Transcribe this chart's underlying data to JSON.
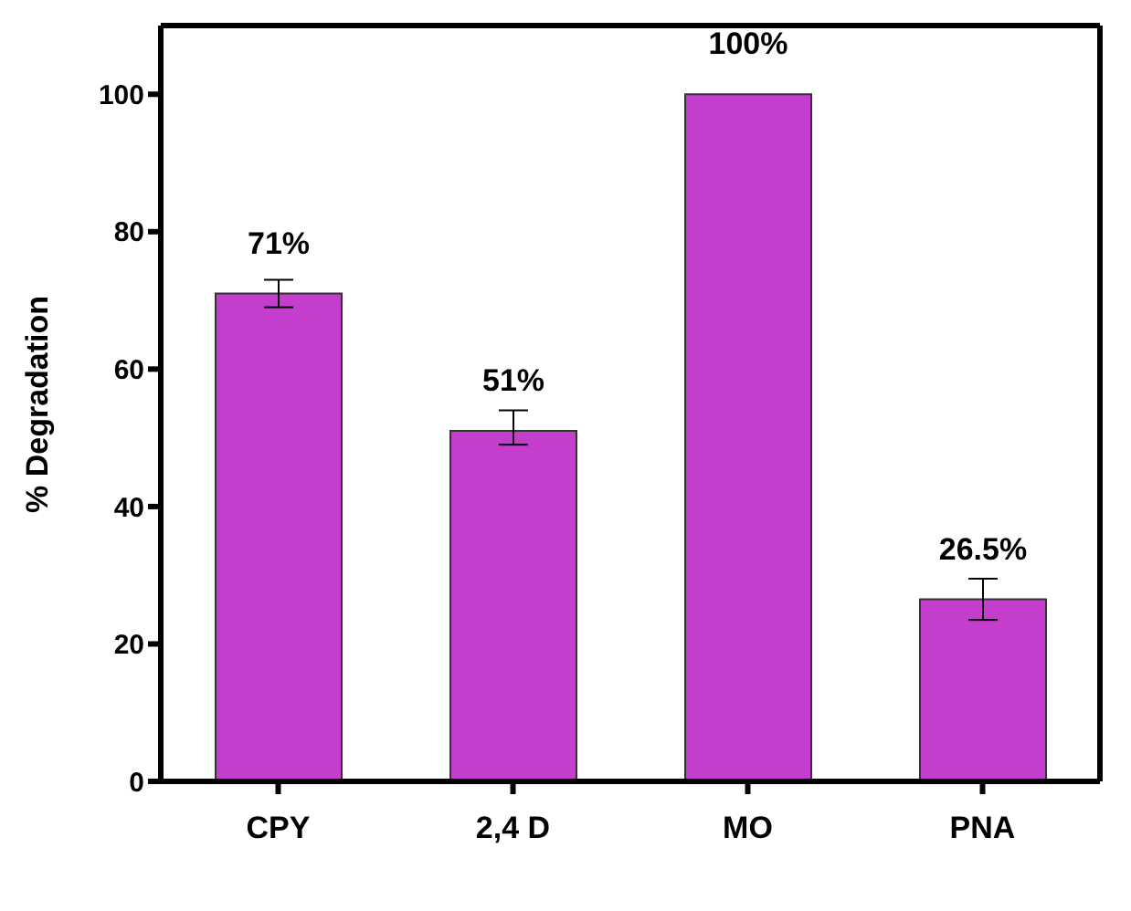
{
  "chart_data": {
    "type": "bar",
    "ylabel": "% Degradation",
    "categories": [
      "CPY",
      "2,4 D",
      "MO",
      "PNA"
    ],
    "values": [
      71,
      51,
      100,
      26.5
    ],
    "errors": [
      2,
      [
        49,
        54
      ],
      null,
      3
    ],
    "value_labels": [
      "71%",
      "51%",
      "100%",
      "26.5%"
    ],
    "color": "#c43dcc",
    "ylim": [
      0,
      110
    ],
    "yticks": [
      0,
      20,
      40,
      60,
      80,
      100
    ],
    "grid": false,
    "legend": false
  }
}
